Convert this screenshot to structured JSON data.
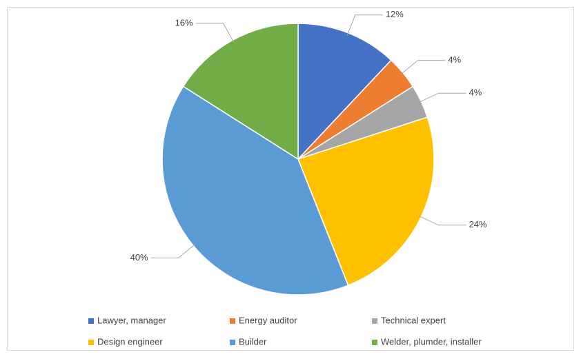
{
  "chart_data": {
    "type": "pie",
    "categories": [
      "Lawyer, manager",
      "Energy auditor",
      "Technical expert",
      "Design engineer",
      "Builder",
      "Welder, plumder, installer"
    ],
    "values": [
      12,
      4,
      4,
      24,
      40,
      16
    ],
    "value_labels": [
      "12%",
      "4%",
      "4%",
      "24%",
      "40%",
      "16%"
    ],
    "colors": [
      "#4472c4",
      "#ed7d31",
      "#a5a5a5",
      "#ffc000",
      "#5b9bd5",
      "#70ad47"
    ],
    "legend": "bottom"
  }
}
